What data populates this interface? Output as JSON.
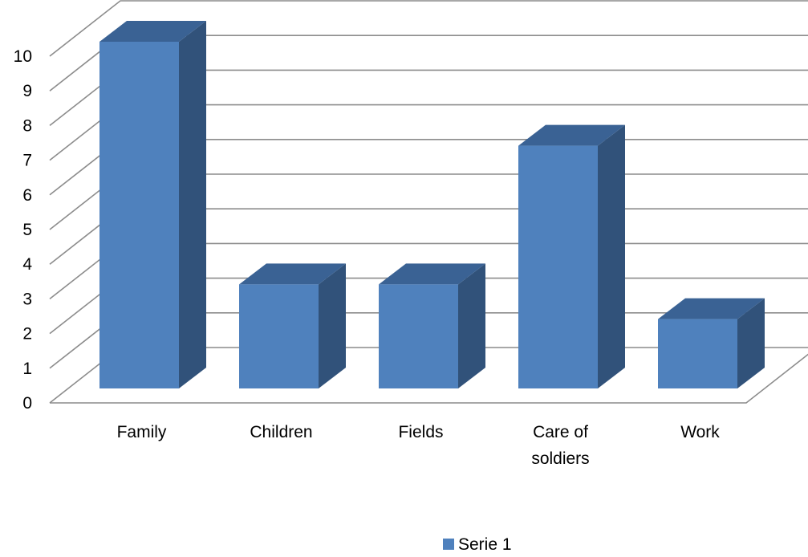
{
  "chart_data": {
    "type": "bar",
    "style": "3d-column",
    "categories": [
      [
        "Family"
      ],
      [
        "Children"
      ],
      [
        "Fields"
      ],
      [
        "Care of",
        "soldiers"
      ],
      [
        "Work"
      ]
    ],
    "series": [
      {
        "name": "Serie 1",
        "values": [
          10,
          3,
          3,
          7,
          2
        ],
        "color": "#4F81BD"
      }
    ],
    "yticks": [
      "0",
      "1",
      "2",
      "3",
      "4",
      "5",
      "6",
      "7",
      "8",
      "9",
      "10"
    ],
    "ylim": [
      0,
      10
    ],
    "grid": true,
    "legend": "bottom-center",
    "colors": {
      "front": "#4F81BD",
      "side": "#31527A",
      "top": "#3A6294",
      "grid": "#8C8C8C"
    }
  }
}
